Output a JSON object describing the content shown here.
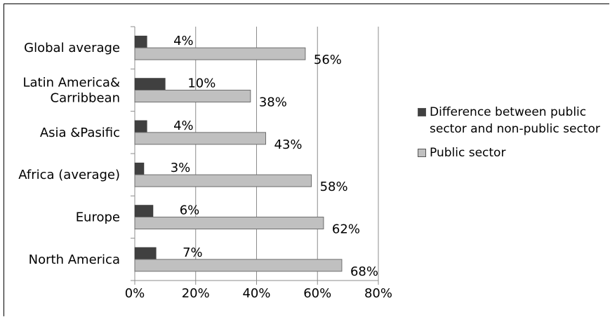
{
  "chart_data": {
    "type": "bar",
    "orientation": "horizontal",
    "categories": [
      "Global average",
      "Latin America& Carribbean",
      "Asia &Pasific",
      "Africa (average)",
      "Europe",
      "North America"
    ],
    "category_lines": [
      [
        "Global average"
      ],
      [
        "Latin America&",
        "Carribbean"
      ],
      [
        "Asia &Pasific"
      ],
      [
        "Africa (average)"
      ],
      [
        "Europe"
      ],
      [
        "North America"
      ]
    ],
    "series": [
      {
        "name": "Difference between public sector and non-public sector",
        "values": [
          4,
          10,
          4,
          3,
          6,
          7
        ],
        "labels": [
          "4%",
          "10%",
          "4%",
          "3%",
          "6%",
          "7%"
        ],
        "color": "#404040"
      },
      {
        "name": "Public sector",
        "values": [
          56,
          38,
          43,
          58,
          62,
          68
        ],
        "labels": [
          "56%",
          "38%",
          "43%",
          "58%",
          "62%",
          "68%"
        ],
        "color": "#c0c0c0"
      }
    ],
    "xlim": [
      0,
      80
    ],
    "xticks": [
      0,
      20,
      40,
      60,
      80
    ],
    "xtick_labels": [
      "0%",
      "20%",
      "40%",
      "60%",
      "80%"
    ],
    "grid": "vertical",
    "legend": "right",
    "title": "",
    "xlabel": "",
    "ylabel": ""
  },
  "legend": {
    "item0": "Difference between public sector and non-public sector",
    "item1": "Public sector"
  }
}
